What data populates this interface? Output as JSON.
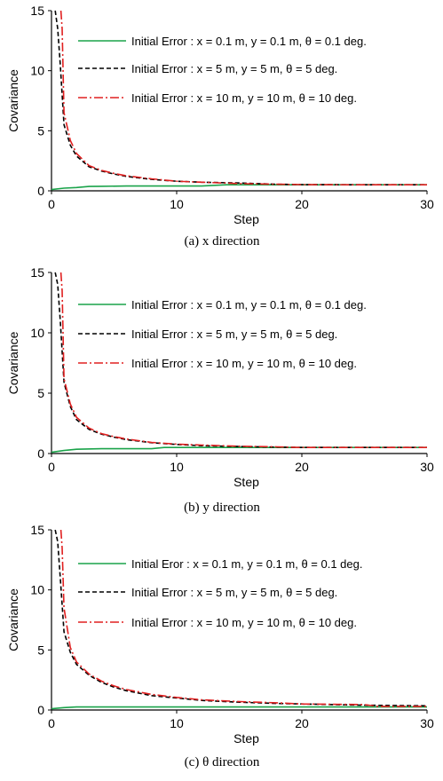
{
  "chart_data": [
    {
      "type": "line",
      "caption": "(a) x direction",
      "xlabel": "Step",
      "ylabel": "Covariance",
      "xlim": [
        0,
        30
      ],
      "ylim": [
        0,
        15
      ],
      "xticks": [
        0,
        10,
        20,
        30
      ],
      "yticks": [
        0,
        5,
        10,
        15
      ],
      "legend_position": "top-right",
      "series": [
        {
          "name": "Initial Error : x = 0.1 m, y = 0.1 m, θ = 0.1 deg.",
          "color": "#1aa34a",
          "dash": "solid",
          "x": [
            0,
            1,
            2,
            3,
            4,
            6,
            8,
            10,
            12,
            14,
            16,
            18,
            20,
            25,
            30
          ],
          "y": [
            0.1,
            0.22,
            0.27,
            0.36,
            0.38,
            0.4,
            0.4,
            0.4,
            0.4,
            0.5,
            0.5,
            0.5,
            0.5,
            0.5,
            0.5
          ]
        },
        {
          "name": "Initial Error : x = 5 m, y = 5 m, θ = 5 deg.",
          "color": "#000000",
          "dash": "dashed",
          "x": [
            0.3,
            0.5,
            0.7,
            1,
            1.5,
            2,
            3,
            4,
            5,
            6,
            8,
            10,
            12,
            15,
            18,
            20,
            25,
            30
          ],
          "y": [
            15,
            13.5,
            10.5,
            5.5,
            3.8,
            2.9,
            2.0,
            1.65,
            1.4,
            1.2,
            0.95,
            0.8,
            0.72,
            0.65,
            0.55,
            0.52,
            0.5,
            0.5
          ]
        },
        {
          "name": "Initial Error : x = 10 m, y = 10 m, θ = 10 deg.",
          "color": "#e02020",
          "dash": "dashdot",
          "x": [
            0.75,
            0.85,
            1,
            1.5,
            2,
            3,
            4,
            5,
            6,
            8,
            10,
            12,
            15,
            18,
            20,
            25,
            30
          ],
          "y": [
            15,
            13.5,
            6.5,
            4.2,
            3.1,
            2.1,
            1.7,
            1.45,
            1.25,
            1.0,
            0.8,
            0.72,
            0.6,
            0.55,
            0.52,
            0.5,
            0.5
          ]
        }
      ]
    },
    {
      "type": "line",
      "caption": "(b) y direction",
      "xlabel": "Step",
      "ylabel": "Covariance",
      "xlim": [
        0,
        30
      ],
      "ylim": [
        0,
        15
      ],
      "xticks": [
        0,
        10,
        20,
        30
      ],
      "yticks": [
        0,
        5,
        10,
        15
      ],
      "legend_position": "top-right",
      "series": [
        {
          "name": "Initial Error : x = 0.1 m, y = 0.1 m, θ = 0.1 deg.",
          "color": "#1aa34a",
          "dash": "solid",
          "x": [
            0,
            1,
            2,
            4,
            6,
            8,
            9,
            10,
            15,
            20,
            25,
            30
          ],
          "y": [
            0.1,
            0.25,
            0.35,
            0.4,
            0.4,
            0.4,
            0.5,
            0.5,
            0.5,
            0.5,
            0.5,
            0.5
          ]
        },
        {
          "name": "Initial Error : x = 5 m, y = 5 m, θ = 5 deg.",
          "color": "#000000",
          "dash": "dashed",
          "x": [
            0.3,
            0.5,
            0.7,
            1,
            1.5,
            2,
            3,
            4,
            5,
            6,
            8,
            10,
            12,
            15,
            18,
            20,
            25,
            30
          ],
          "y": [
            15,
            14,
            11,
            5.9,
            3.9,
            2.8,
            2.0,
            1.6,
            1.35,
            1.15,
            0.9,
            0.75,
            0.65,
            0.58,
            0.53,
            0.5,
            0.5,
            0.5
          ]
        },
        {
          "name": "Initial Error : x = 10 m, y = 10 m, θ = 10 deg.",
          "color": "#e02020",
          "dash": "dashdot",
          "x": [
            0.75,
            0.85,
            1,
            1.5,
            2,
            3,
            4,
            5,
            6,
            8,
            10,
            12,
            15,
            18,
            20,
            25,
            30
          ],
          "y": [
            15,
            13.5,
            6.2,
            4.1,
            3.0,
            2.1,
            1.65,
            1.4,
            1.2,
            0.92,
            0.78,
            0.7,
            0.6,
            0.55,
            0.5,
            0.5,
            0.5
          ]
        }
      ]
    },
    {
      "type": "line",
      "caption": "(c) θ direction",
      "xlabel": "Step",
      "ylabel": "Covariance",
      "xlim": [
        0,
        30
      ],
      "ylim": [
        0,
        15
      ],
      "xticks": [
        0,
        10,
        20,
        30
      ],
      "yticks": [
        0,
        5,
        10,
        15
      ],
      "legend_position": "top-right",
      "series": [
        {
          "name": "Initial Eror : x = 0.1 m, y = 0.1 m, θ = 0.1 deg.",
          "color": "#1aa34a",
          "dash": "solid",
          "x": [
            0,
            1,
            2,
            4,
            10,
            20,
            30
          ],
          "y": [
            0.1,
            0.2,
            0.25,
            0.25,
            0.25,
            0.25,
            0.25
          ]
        },
        {
          "name": "Initial Error : x = 5 m, y = 5 m, θ = 5 deg.",
          "color": "#000000",
          "dash": "dashed",
          "x": [
            0.3,
            0.5,
            0.7,
            1,
            1.5,
            2,
            3,
            4,
            5,
            6,
            8,
            10,
            12,
            15,
            18,
            20,
            25,
            30
          ],
          "y": [
            15,
            14,
            11,
            6.5,
            4.8,
            3.8,
            2.9,
            2.3,
            1.9,
            1.6,
            1.2,
            1.0,
            0.8,
            0.65,
            0.55,
            0.5,
            0.4,
            0.35
          ]
        },
        {
          "name": "Initial Error : x = 10 m, y = 10 m, θ = 10 deg.",
          "color": "#e02020",
          "dash": "dashdot",
          "x": [
            0.75,
            0.85,
            1,
            1.5,
            2,
            3,
            4,
            5,
            6,
            8,
            10,
            12,
            15,
            18,
            20,
            25,
            26,
            30
          ],
          "y": [
            15,
            13.5,
            8.5,
            5.2,
            4.0,
            3.0,
            2.4,
            2.0,
            1.7,
            1.3,
            1.05,
            0.85,
            0.7,
            0.6,
            0.5,
            0.45,
            0.3,
            0.3
          ]
        }
      ]
    }
  ]
}
